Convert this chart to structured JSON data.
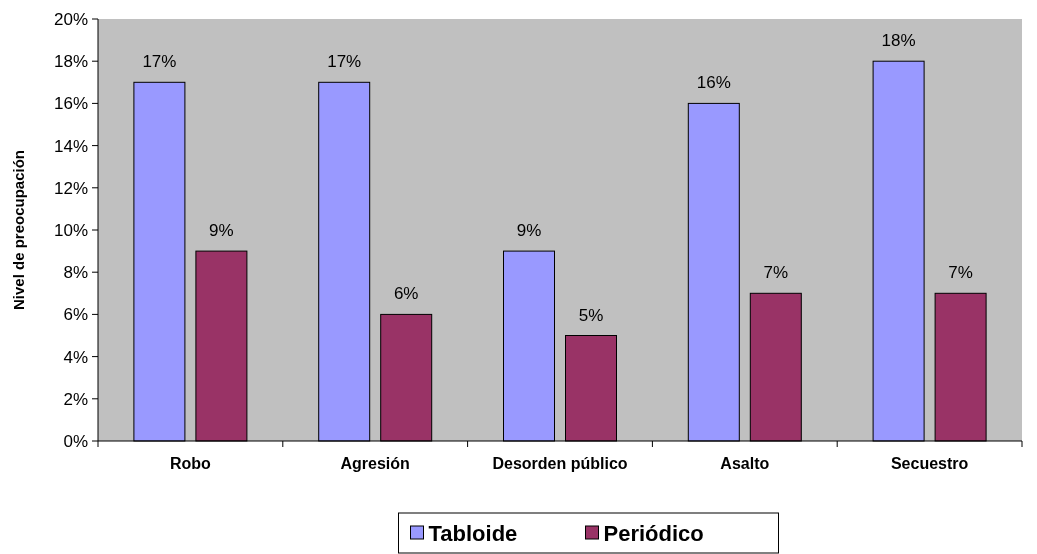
{
  "chart_data": {
    "type": "bar",
    "ylabel": "Nivel de preocupación",
    "categories": [
      "Robo",
      "Agresión",
      "Desorden público",
      "Asalto",
      "Secuestro"
    ],
    "series": [
      {
        "name": "Tabloide",
        "color": "#9999ff",
        "values": [
          17,
          17,
          9,
          16,
          18
        ],
        "value_labels": [
          "17%",
          "17%",
          "9%",
          "16%",
          "18%"
        ]
      },
      {
        "name": "Periódico",
        "color": "#993366",
        "values": [
          9,
          6,
          5,
          7,
          7
        ],
        "value_labels": [
          "9%",
          "6%",
          "5%",
          "7%",
          "7%"
        ]
      }
    ],
    "ylim": [
      0,
      20
    ],
    "yticks": [
      {
        "value": 0,
        "label": "0%"
      },
      {
        "value": 2,
        "label": "2%"
      },
      {
        "value": 4,
        "label": "4%"
      },
      {
        "value": 6,
        "label": "6%"
      },
      {
        "value": 8,
        "label": "8%"
      },
      {
        "value": 10,
        "label": "10%"
      },
      {
        "value": 12,
        "label": "12%"
      },
      {
        "value": 14,
        "label": "14%"
      },
      {
        "value": 16,
        "label": "16%"
      },
      {
        "value": 18,
        "label": "18%"
      },
      {
        "value": 20,
        "label": "20%"
      }
    ],
    "grid": false,
    "legend": "bottom"
  }
}
